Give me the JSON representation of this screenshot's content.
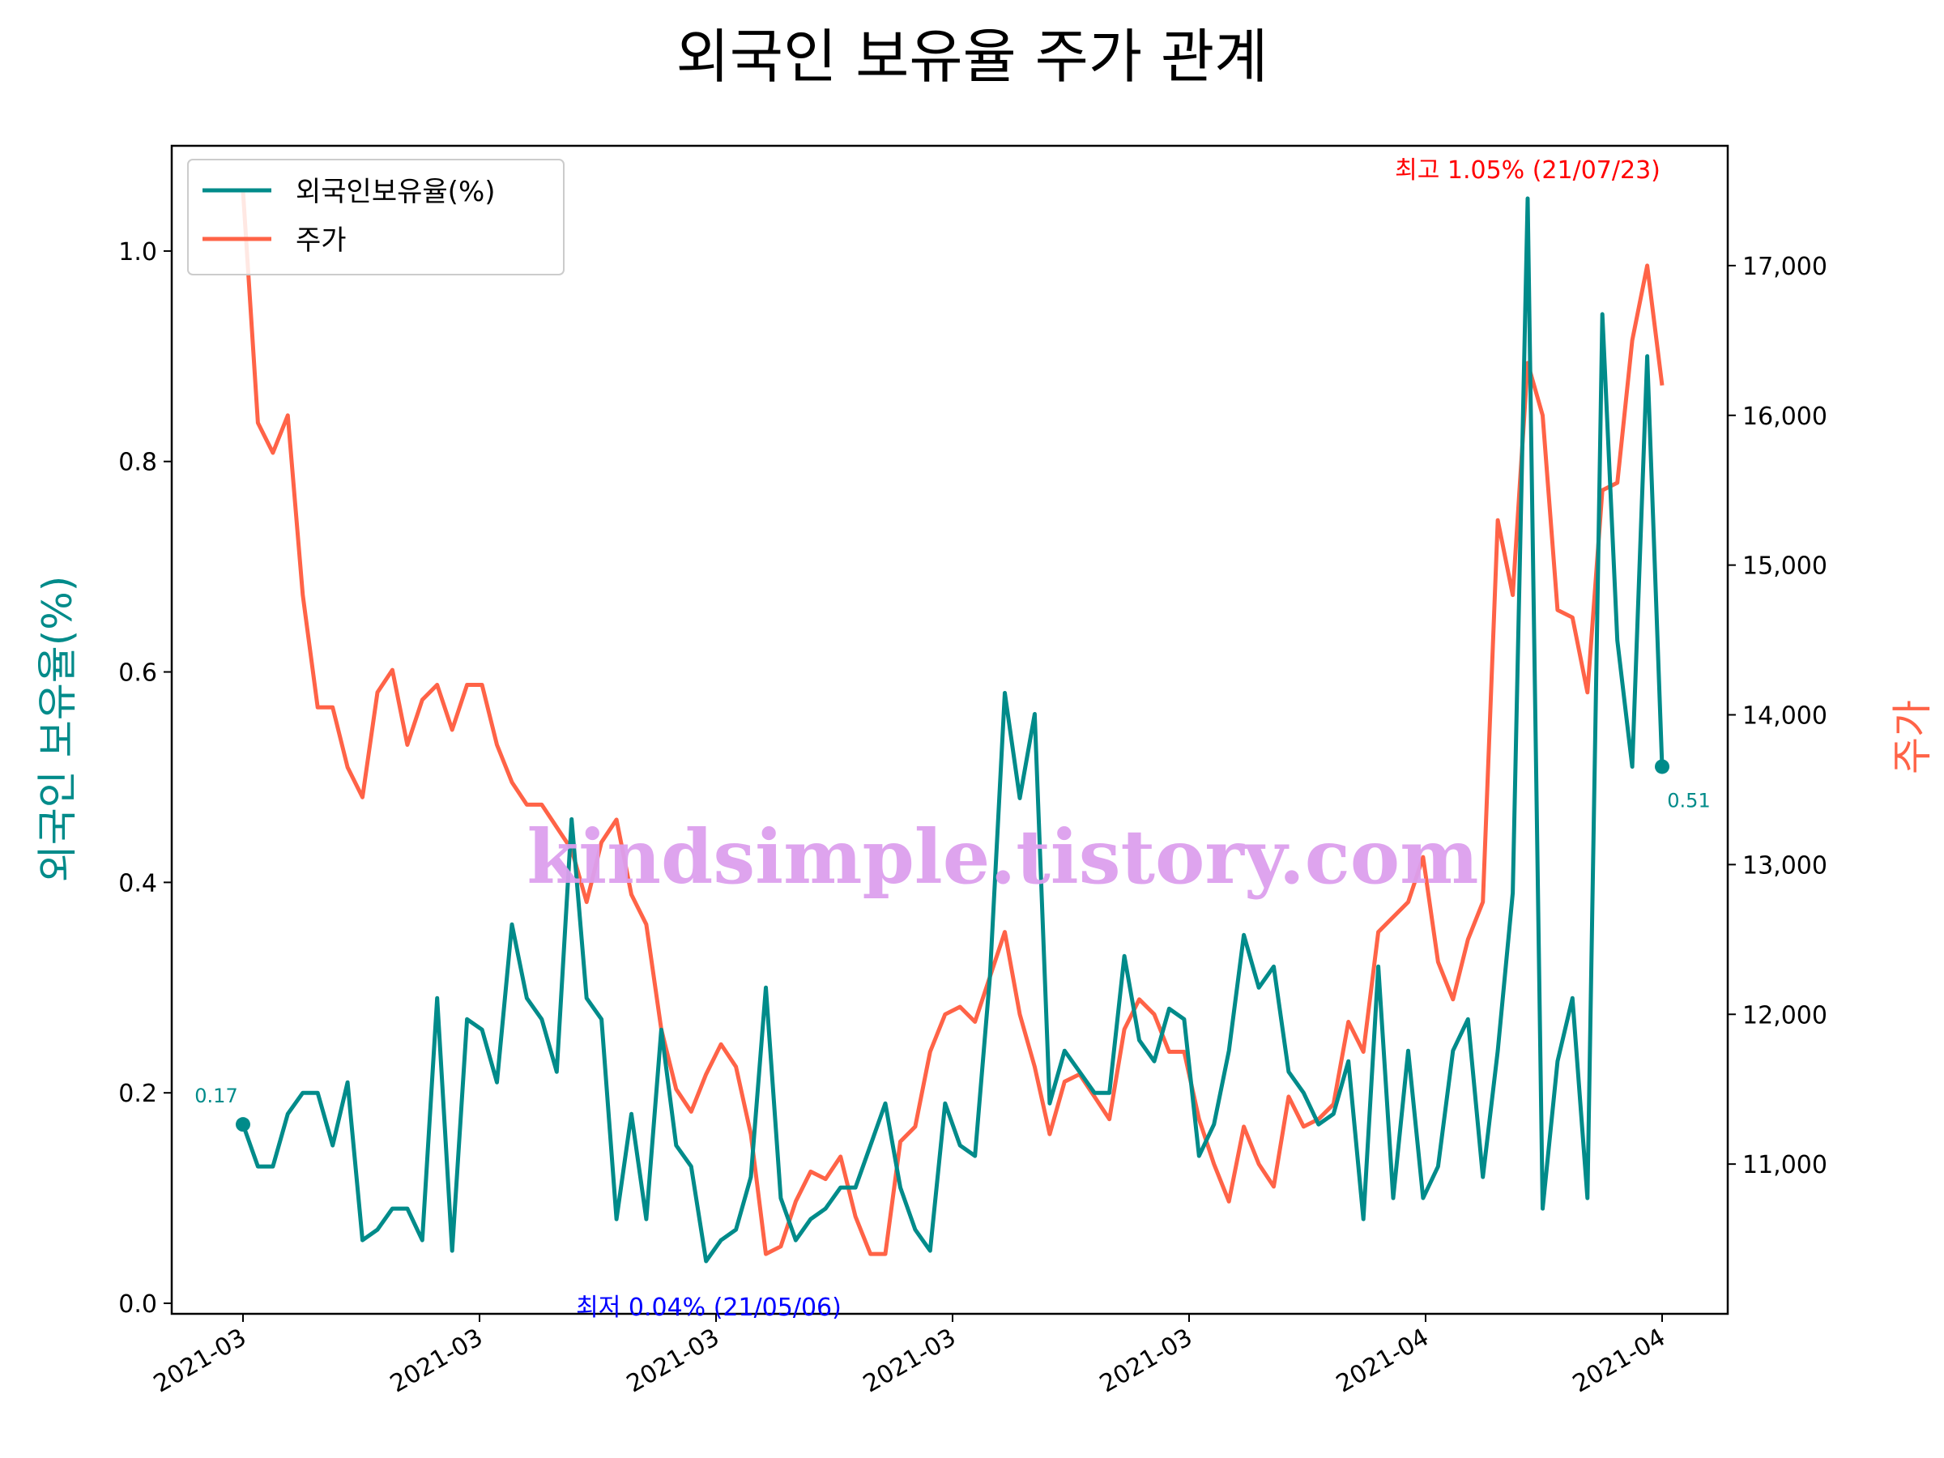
{
  "chart_data": {
    "type": "line",
    "title": "외국인 보유율 주가 관계",
    "ylabel_left": "외국인 보유율(%)",
    "ylabel_right": "주가",
    "x_tick_labels": [
      "2021-03",
      "2021-03",
      "2021-03",
      "2021-03",
      "2021-03",
      "2021-04",
      "2021-04"
    ],
    "ylim_left": [
      -0.01,
      1.1
    ],
    "ylim_right": [
      10000,
      17800
    ],
    "yticks_left": [
      "0.0",
      "0.2",
      "0.4",
      "0.6",
      "0.8",
      "1.0"
    ],
    "yticks_right": [
      "11,000",
      "12,000",
      "13,000",
      "14,000",
      "15,000",
      "16,000",
      "17,000"
    ],
    "legend_position": "top-left",
    "grid": false,
    "series": [
      {
        "name": "외국인보유율(%)",
        "axis": "left",
        "color": "#008b8a",
        "values": [
          0.17,
          0.13,
          0.13,
          0.18,
          0.2,
          0.2,
          0.15,
          0.21,
          0.06,
          0.07,
          0.09,
          0.09,
          0.06,
          0.29,
          0.05,
          0.27,
          0.26,
          0.21,
          0.36,
          0.29,
          0.27,
          0.22,
          0.46,
          0.29,
          0.27,
          0.08,
          0.18,
          0.08,
          0.26,
          0.15,
          0.13,
          0.04,
          0.06,
          0.07,
          0.12,
          0.3,
          0.1,
          0.06,
          0.08,
          0.09,
          0.11,
          0.11,
          0.15,
          0.19,
          0.11,
          0.07,
          0.05,
          0.19,
          0.15,
          0.14,
          0.31,
          0.58,
          0.48,
          0.56,
          0.19,
          0.24,
          0.22,
          0.2,
          0.2,
          0.33,
          0.25,
          0.23,
          0.28,
          0.27,
          0.14,
          0.17,
          0.24,
          0.35,
          0.3,
          0.32,
          0.22,
          0.2,
          0.17,
          0.18,
          0.23,
          0.08,
          0.32,
          0.1,
          0.24,
          0.1,
          0.13,
          0.24,
          0.27,
          0.12,
          0.24,
          0.39,
          1.05,
          0.09,
          0.23,
          0.29,
          0.1,
          0.94,
          0.63,
          0.51,
          0.9,
          0.51
        ]
      },
      {
        "name": "주가",
        "axis": "right",
        "color": "#ff6347",
        "values": [
          17500,
          15950,
          15750,
          16000,
          14800,
          14050,
          14050,
          13650,
          13450,
          14150,
          14300,
          13800,
          14100,
          14200,
          13900,
          14200,
          14200,
          13800,
          13550,
          13400,
          13400,
          13250,
          13100,
          12750,
          13150,
          13300,
          12800,
          12600,
          11900,
          11500,
          11350,
          11600,
          11800,
          11650,
          11200,
          10400,
          10450,
          10750,
          10950,
          10900,
          11050,
          10650,
          10400,
          10400,
          11150,
          11250,
          11750,
          12000,
          12050,
          11950,
          12250,
          12550,
          12000,
          11650,
          11200,
          11550,
          11600,
          11450,
          11300,
          11900,
          12100,
          12000,
          11750,
          11750,
          11300,
          11000,
          10750,
          11250,
          11000,
          10850,
          11450,
          11250,
          11300,
          11400,
          11950,
          11750,
          12550,
          12650,
          12750,
          13050,
          12350,
          12100,
          12500,
          12750,
          15300,
          14800,
          16350,
          16000,
          14700,
          14650,
          14150,
          15500,
          15550,
          16500,
          17000,
          16200
        ]
      }
    ],
    "annotations": {
      "max_label": "최고 1.05% (21/07/23)",
      "max_color": "#ff0000",
      "min_label": "최저 0.04% (21/05/06)",
      "min_color": "#0000ff",
      "start_label": "0.17",
      "end_label": "0.51"
    },
    "watermark": "kindsimple.tistory.com"
  }
}
